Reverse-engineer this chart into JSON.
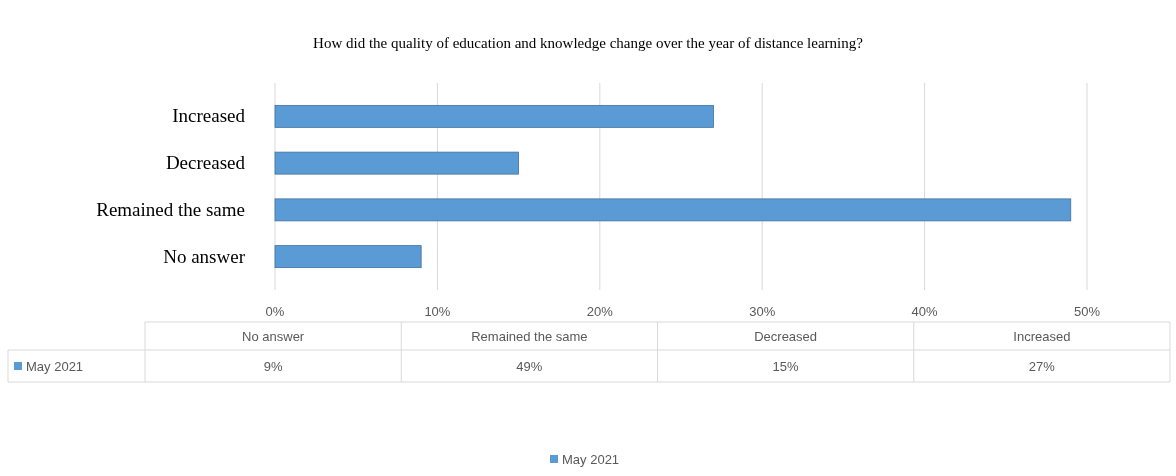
{
  "chart_data": {
    "type": "bar",
    "orientation": "horizontal",
    "title": "How did the quality of education and knowledge change over the year of distance learning?",
    "categories": [
      "Increased",
      "Decreased",
      "Remained the same",
      "No answer"
    ],
    "series": [
      {
        "name": "May 2021",
        "color": "#5b9bd5",
        "values": [
          27,
          15,
          49,
          9
        ]
      }
    ],
    "annotations": [
      "9%",
      "49%",
      "15%",
      "27%"
    ],
    "xlim": [
      0,
      50
    ],
    "xticks": [
      {
        "value": 0,
        "label": "0%"
      },
      {
        "value": 10,
        "label": "10%"
      },
      {
        "value": 20,
        "label": "20%"
      },
      {
        "value": 30,
        "label": "30%"
      },
      {
        "value": 40,
        "label": "40%"
      },
      {
        "value": 50,
        "label": "50%"
      }
    ],
    "grid": "x",
    "legend": "bottom"
  }
}
